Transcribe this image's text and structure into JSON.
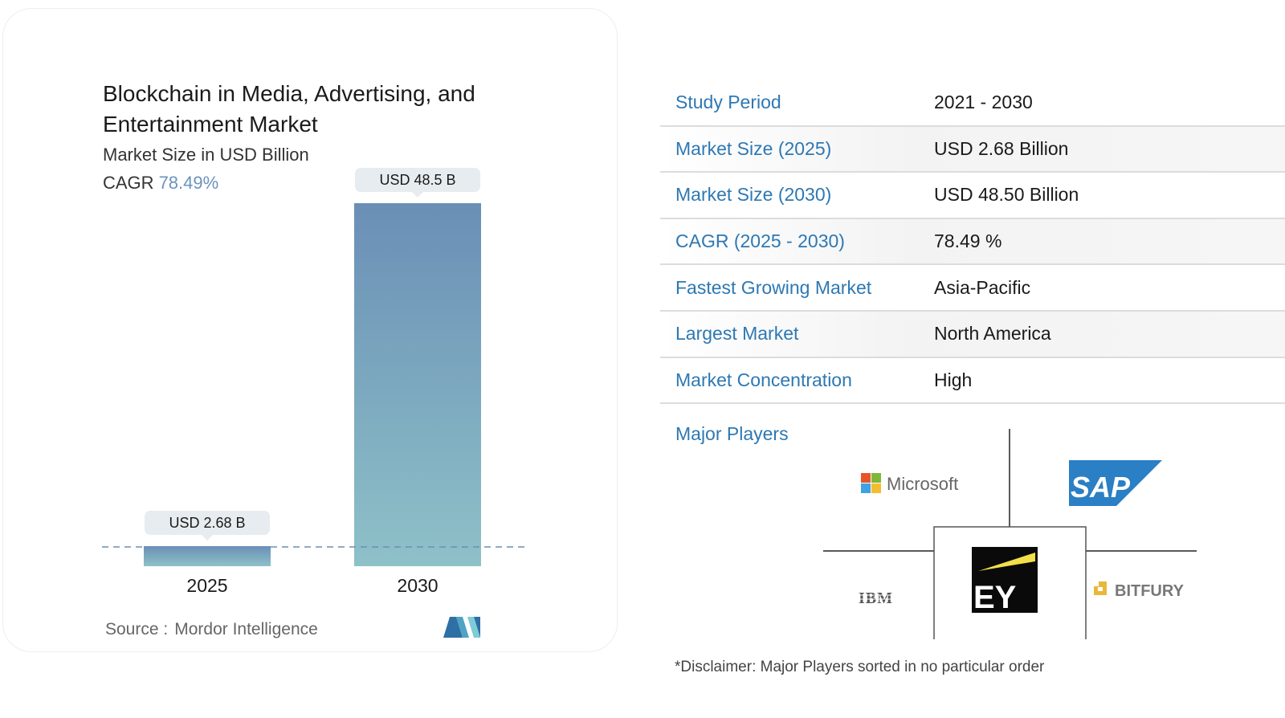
{
  "chart_data": {
    "type": "bar",
    "title": "Blockchain in Media, Advertising, and Entertainment Market",
    "subtitle": "Market Size in USD Billion",
    "cagr_label": "CAGR",
    "cagr_value": "78.49%",
    "categories": [
      "2025",
      "2030"
    ],
    "values": [
      2.68,
      48.5
    ],
    "data_labels": [
      "USD 2.68 B",
      "USD 48.5 B"
    ],
    "xlabel": "",
    "ylabel": "",
    "ylim": [
      0,
      48.5
    ],
    "grid": false,
    "bar_gradient": {
      "top": "#6a8fb6",
      "bottom": "#8ec1c8"
    },
    "reference_line_color": "#6d8fb4",
    "source_label": "Source :",
    "source_name": "Mordor Intelligence"
  },
  "info_table": [
    {
      "label": "Study Period",
      "value": "2021 - 2030"
    },
    {
      "label": "Market Size (2025)",
      "value": "USD 2.68 Billion"
    },
    {
      "label": "Market Size (2030)",
      "value": "USD 48.50 Billion"
    },
    {
      "label": "CAGR (2025 - 2030)",
      "value": "78.49 %"
    },
    {
      "label": "Fastest Growing Market",
      "value": "Asia-Pacific"
    },
    {
      "label": "Largest Market",
      "value": "North America"
    },
    {
      "label": "Market Concentration",
      "value": "High"
    }
  ],
  "major_players": {
    "title": "Major Players",
    "players": [
      "Microsoft",
      "SAP",
      "IBM",
      "EY",
      "BITFURY"
    ]
  },
  "disclaimer": "*Disclaimer: Major Players sorted in no particular order",
  "colors": {
    "accent_blue": "#2d78b3",
    "cagr_blue": "#6a94bd"
  }
}
